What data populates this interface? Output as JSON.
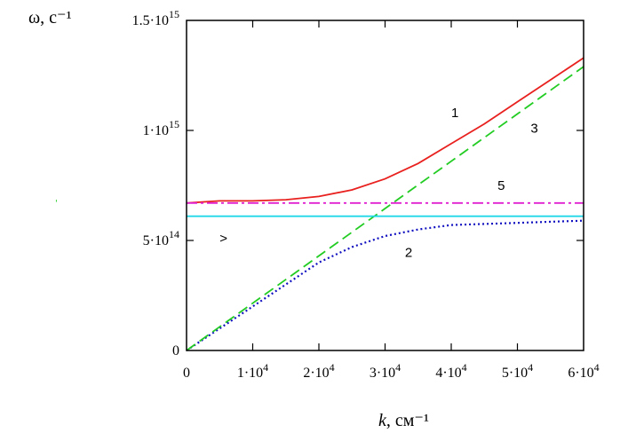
{
  "chart_data": {
    "type": "line",
    "ylabel": "ω, c⁻¹",
    "xlabel_italic": "k",
    "xlabel_unit": ", см⁻¹",
    "xlim": [
      0,
      60000
    ],
    "ylim": [
      0,
      1500000000000000.0
    ],
    "x_ticks": [
      {
        "value": 0,
        "mant": "0",
        "exp": ""
      },
      {
        "value": 10000,
        "mant": "1·10",
        "exp": "4"
      },
      {
        "value": 20000,
        "mant": "2·10",
        "exp": "4"
      },
      {
        "value": 30000,
        "mant": "3·10",
        "exp": "4"
      },
      {
        "value": 40000,
        "mant": "4·10",
        "exp": "4"
      },
      {
        "value": 50000,
        "mant": "5·10",
        "exp": "4"
      },
      {
        "value": 60000,
        "mant": "6·10",
        "exp": "4"
      }
    ],
    "y_ticks": [
      {
        "value": 0,
        "mant": "0",
        "exp": ""
      },
      {
        "value": 500000000000000.0,
        "mant": "5·10",
        "exp": "14"
      },
      {
        "value": 1000000000000000.0,
        "mant": "1·10",
        "exp": "15"
      },
      {
        "value": 1500000000000000.0,
        "mant": "1.5·10",
        "exp": "15"
      }
    ],
    "grid": false,
    "series": [
      {
        "label": "1",
        "color": "#e8201e",
        "style": "solid",
        "label_at": [
          40000,
          1060000000000000.0
        ],
        "points": [
          [
            0,
            670000000000000.0
          ],
          [
            5000,
            680000000000000.0
          ],
          [
            10000,
            680000000000000.0
          ],
          [
            15000,
            685000000000000.0
          ],
          [
            20000,
            700000000000000.0
          ],
          [
            25000,
            730000000000000.0
          ],
          [
            30000,
            780000000000000.0
          ],
          [
            35000,
            850000000000000.0
          ],
          [
            40000,
            940000000000000.0
          ],
          [
            45000,
            1030000000000000.0
          ],
          [
            50000,
            1130000000000000.0
          ],
          [
            55000,
            1230000000000000.0
          ],
          [
            60000,
            1330000000000000.0
          ]
        ]
      },
      {
        "label": "2",
        "color": "#1010c0",
        "style": "dotted",
        "label_at": [
          33000,
          425000000000000.0
        ],
        "points": [
          [
            0,
            0
          ],
          [
            5000,
            100000000000000.0
          ],
          [
            10000,
            200000000000000.0
          ],
          [
            15000,
            300000000000000.0
          ],
          [
            20000,
            400000000000000.0
          ],
          [
            25000,
            470000000000000.0
          ],
          [
            30000,
            520000000000000.0
          ],
          [
            35000,
            550000000000000.0
          ],
          [
            40000,
            570000000000000.0
          ],
          [
            45000,
            575000000000000.0
          ],
          [
            50000,
            580000000000000.0
          ],
          [
            55000,
            585000000000000.0
          ],
          [
            60000,
            590000000000000.0
          ]
        ]
      },
      {
        "label": "3",
        "color": "#22cc22",
        "style": "dashed",
        "label_at": [
          52000,
          990000000000000.0
        ],
        "points": [
          [
            0,
            0
          ],
          [
            10000,
            215000000000000.0
          ],
          [
            20000,
            430000000000000.0
          ],
          [
            30000,
            645000000000000.0
          ],
          [
            40000,
            860000000000000.0
          ],
          [
            50000,
            1075000000000000.0
          ],
          [
            60000,
            1290000000000000.0
          ]
        ]
      },
      {
        "label": "5",
        "color": "#e020d0",
        "style": "dashdot",
        "label_at": [
          47000,
          730000000000000.0
        ],
        "points": [
          [
            0,
            670000000000000.0
          ],
          [
            60000,
            670000000000000.0
          ]
        ]
      },
      {
        "label": "",
        "color": "#20d8e8",
        "style": "solid",
        "points": [
          [
            0,
            610000000000000.0
          ],
          [
            60000,
            610000000000000.0
          ]
        ]
      }
    ],
    "annotation": {
      "text": ">",
      "at": [
        5000,
        490000000000000.0
      ]
    }
  }
}
